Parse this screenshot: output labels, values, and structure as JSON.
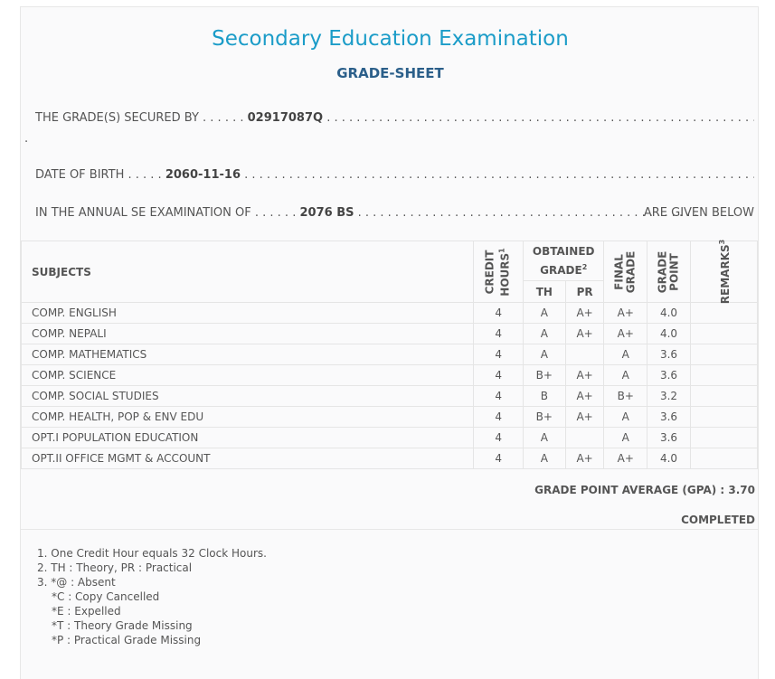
{
  "header": {
    "title": "Secondary Education Examination",
    "subtitle": "GRADE-SHEET"
  },
  "info": {
    "secured_label": "THE GRADE(S) SECURED BY",
    "secured_lead": ". . . . . .",
    "symbol_no": "02917087Q",
    "secured_trail": ". . . . . . . . . . . . . . . . . . . . . . . . . . . . . . . . . . . . . . . . . . . . . . . . . . . . . . . . . . . . . . . . . . . . . . . . . . . . . . . . . . . . . . . . .",
    "secured_wrap": ".",
    "dob_label": "DATE OF BIRTH",
    "dob_lead": ". . . . .",
    "dob": "2060-11-16",
    "dob_trail": ". . . . . . . . . . . . . . . . . . . . . . . . . . . . . . . . . . . . . . . . . . . . . . . . . . . . . . . . . . . . . . . . . . . . . . . . . . . . . . . . . . . . . . . . . . . . . . . . . . . .",
    "exam_label": "IN THE ANNUAL SE EXAMINATION OF",
    "exam_lead": ". . . . . .",
    "exam_year": "2076 BS",
    "exam_trail": ". . . . . . . . . . . . . . . . . . . . . . . . . . . . . . . . . . . . . . . . . . . . . .",
    "exam_tail": "ARE GIVEN BELOW"
  },
  "table": {
    "headers": {
      "subjects": "SUBJECTS",
      "credit": "CREDIT",
      "hours": "HOURS",
      "hours_sup": "1",
      "obtained": "OBTAINED",
      "grade": "GRADE",
      "grade_sup": "2",
      "th": "TH",
      "pr": "PR",
      "final": "FINAL",
      "final_grade": "GRADE",
      "grade_word": "GRADE",
      "point": "POINT",
      "remarks": "REMARKS",
      "remarks_sup": "3"
    },
    "rows": [
      {
        "subject": "COMP. ENGLISH",
        "credit": "4",
        "th": "A",
        "pr": "A+",
        "final": "A+",
        "gp": "4.0",
        "remarks": ""
      },
      {
        "subject": "COMP. NEPALI",
        "credit": "4",
        "th": "A",
        "pr": "A+",
        "final": "A+",
        "gp": "4.0",
        "remarks": ""
      },
      {
        "subject": "COMP. MATHEMATICS",
        "credit": "4",
        "th": "A",
        "pr": "",
        "final": "A",
        "gp": "3.6",
        "remarks": ""
      },
      {
        "subject": "COMP. SCIENCE",
        "credit": "4",
        "th": "B+",
        "pr": "A+",
        "final": "A",
        "gp": "3.6",
        "remarks": ""
      },
      {
        "subject": "COMP. SOCIAL STUDIES",
        "credit": "4",
        "th": "B",
        "pr": "A+",
        "final": "B+",
        "gp": "3.2",
        "remarks": ""
      },
      {
        "subject": "COMP. HEALTH, POP & ENV EDU",
        "credit": "4",
        "th": "B+",
        "pr": "A+",
        "final": "A",
        "gp": "3.6",
        "remarks": ""
      },
      {
        "subject": "OPT.I POPULATION EDUCATION",
        "credit": "4",
        "th": "A",
        "pr": "",
        "final": "A",
        "gp": "3.6",
        "remarks": ""
      },
      {
        "subject": "OPT.II OFFICE MGMT & ACCOUNT",
        "credit": "4",
        "th": "A",
        "pr": "A+",
        "final": "A+",
        "gp": "4.0",
        "remarks": ""
      }
    ]
  },
  "summary": {
    "gpa_label": "GRADE POINT AVERAGE (GPA) :",
    "gpa_value": "3.70",
    "status": "COMPLETED"
  },
  "notes": {
    "n1": "1. One Credit Hour equals 32 Clock Hours.",
    "n2": "2. TH : Theory, PR : Practical",
    "n3": "3. *@ : Absent",
    "n3a": "*C : Copy Cancelled",
    "n3b": "*E : Expelled",
    "n3c": "*T : Theory Grade Missing",
    "n3d": "*P : Practical Grade Missing"
  }
}
